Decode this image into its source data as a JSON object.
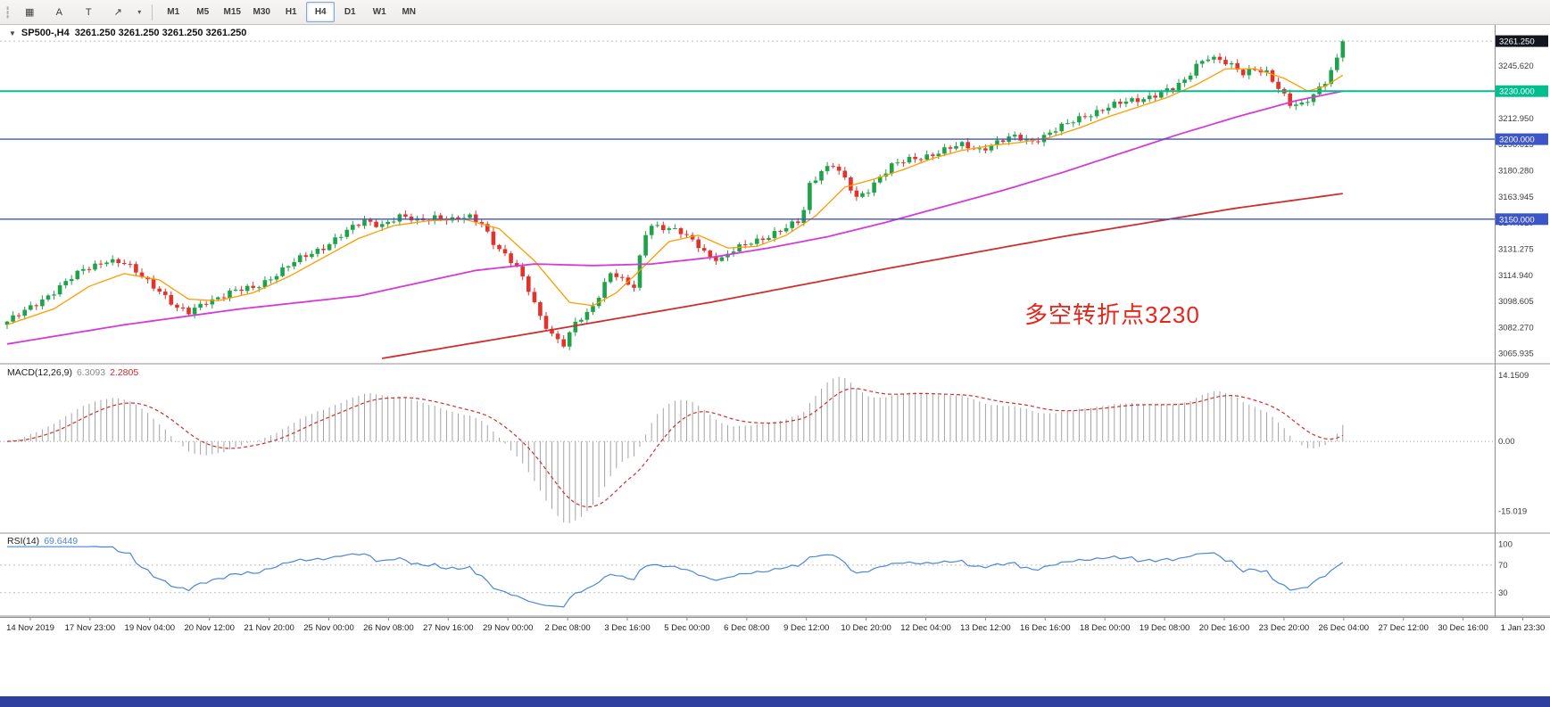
{
  "toolbar": {
    "grip_glyph": "┇",
    "tools": [
      {
        "name": "windows-grid-tool",
        "glyph": "▦"
      },
      {
        "name": "text-annotate-tool",
        "glyph": "A"
      },
      {
        "name": "text-label-tool",
        "glyph": "T"
      },
      {
        "name": "shapes-arrow-tool",
        "glyph": "↗"
      },
      {
        "name": "shapes-dropdown-caret",
        "glyph": "▾"
      }
    ],
    "timeframes": [
      "M1",
      "M5",
      "M15",
      "M30",
      "H1",
      "H4",
      "D1",
      "W1",
      "MN"
    ],
    "active_timeframe": "H4"
  },
  "chart_data": [
    {
      "type": "candlestick",
      "symbol_header": "SP500-,H4",
      "ohlc_header": "3261.250 3261.250 3261.250 3261.250",
      "collapse_icon": "▼",
      "timeframe": "H4",
      "current_price": 3261.25,
      "price_label": "3261.250",
      "price_badge_bg": "#14161f",
      "candle_count": 229,
      "up_color": "#1fa24a",
      "down_color": "#e0332c",
      "price_range": [
        3063,
        3268
      ],
      "y_ticks": [
        3245.62,
        3229.285,
        3212.95,
        3196.615,
        3180.28,
        3163.945,
        3147.61,
        3131.275,
        3114.94,
        3098.605,
        3082.27,
        3065.935
      ],
      "levels": [
        {
          "value": 3230.0,
          "label": "3230.000",
          "color": "#00bf8f",
          "width": 2
        },
        {
          "value": 3200.0,
          "label": "3200.000",
          "color": "#3c55c8",
          "width": 1.4
        },
        {
          "value": 3150.0,
          "label": "3150.000",
          "color": "#3c55c8",
          "width": 1.4
        }
      ],
      "close_path_anchors": [
        [
          0,
          3086
        ],
        [
          3,
          3092
        ],
        [
          6,
          3100
        ],
        [
          9,
          3108
        ],
        [
          13,
          3118
        ],
        [
          17,
          3125
        ],
        [
          20,
          3122
        ],
        [
          23,
          3114
        ],
        [
          26,
          3106
        ],
        [
          29,
          3094
        ],
        [
          31,
          3091
        ],
        [
          34,
          3099
        ],
        [
          38,
          3104
        ],
        [
          42,
          3107
        ],
        [
          46,
          3116
        ],
        [
          50,
          3125
        ],
        [
          54,
          3133
        ],
        [
          58,
          3142
        ],
        [
          61,
          3149
        ],
        [
          64,
          3147
        ],
        [
          67,
          3151
        ],
        [
          70,
          3149
        ],
        [
          73,
          3152
        ],
        [
          76,
          3149
        ],
        [
          79,
          3151
        ],
        [
          81,
          3148
        ],
        [
          83,
          3136
        ],
        [
          85,
          3127
        ],
        [
          87,
          3119
        ],
        [
          89,
          3106
        ],
        [
          91,
          3090
        ],
        [
          93,
          3078
        ],
        [
          95,
          3071
        ],
        [
          96,
          3077
        ],
        [
          97,
          3085
        ],
        [
          99,
          3091
        ],
        [
          101,
          3103
        ],
        [
          103,
          3117
        ],
        [
          105,
          3111
        ],
        [
          107,
          3107
        ],
        [
          108,
          3126
        ],
        [
          109,
          3142
        ],
        [
          110,
          3147
        ],
        [
          112,
          3145
        ],
        [
          115,
          3141
        ],
        [
          118,
          3134
        ],
        [
          120,
          3127
        ],
        [
          122,
          3125
        ],
        [
          124,
          3130
        ],
        [
          127,
          3136
        ],
        [
          130,
          3140
        ],
        [
          133,
          3144
        ],
        [
          135,
          3148
        ],
        [
          136,
          3156
        ],
        [
          137,
          3172
        ],
        [
          139,
          3181
        ],
        [
          141,
          3184
        ],
        [
          143,
          3174
        ],
        [
          145,
          3163
        ],
        [
          147,
          3169
        ],
        [
          149,
          3177
        ],
        [
          151,
          3183
        ],
        [
          154,
          3187
        ],
        [
          157,
          3190
        ],
        [
          160,
          3193
        ],
        [
          163,
          3196
        ],
        [
          166,
          3194
        ],
        [
          169,
          3198
        ],
        [
          172,
          3201
        ],
        [
          175,
          3199
        ],
        [
          178,
          3204
        ],
        [
          181,
          3209
        ],
        [
          184,
          3215
        ],
        [
          187,
          3219
        ],
        [
          190,
          3222
        ],
        [
          193,
          3225
        ],
        [
          196,
          3228
        ],
        [
          199,
          3231
        ],
        [
          201,
          3236
        ],
        [
          203,
          3247
        ],
        [
          205,
          3252
        ],
        [
          207,
          3249
        ],
        [
          209,
          3245
        ],
        [
          211,
          3241
        ],
        [
          213,
          3245
        ],
        [
          215,
          3242
        ],
        [
          217,
          3231
        ],
        [
          219,
          3221
        ],
        [
          221,
          3222
        ],
        [
          223,
          3229
        ],
        [
          225,
          3236
        ],
        [
          226,
          3242
        ],
        [
          227,
          3249
        ],
        [
          228,
          3261.25
        ]
      ],
      "moving_averages": [
        {
          "name": "ma-fast-orange",
          "color": "#ff9c00",
          "width": 1.3,
          "start_index": 0,
          "anchors": [
            [
              0,
              3084
            ],
            [
              8,
              3094
            ],
            [
              14,
              3108
            ],
            [
              20,
              3116
            ],
            [
              26,
              3112
            ],
            [
              31,
              3100
            ],
            [
              36,
              3099
            ],
            [
              42,
              3104
            ],
            [
              48,
              3114
            ],
            [
              54,
              3126
            ],
            [
              60,
              3138
            ],
            [
              66,
              3146
            ],
            [
              72,
              3149
            ],
            [
              78,
              3150
            ],
            [
              84,
              3144
            ],
            [
              90,
              3124
            ],
            [
              96,
              3098
            ],
            [
              100,
              3096
            ],
            [
              104,
              3104
            ],
            [
              108,
              3118
            ],
            [
              113,
              3136
            ],
            [
              118,
              3140
            ],
            [
              123,
              3132
            ],
            [
              128,
              3133
            ],
            [
              133,
              3140
            ],
            [
              138,
              3152
            ],
            [
              143,
              3170
            ],
            [
              148,
              3175
            ],
            [
              153,
              3181
            ],
            [
              158,
              3188
            ],
            [
              163,
              3193
            ],
            [
              168,
              3196
            ],
            [
              173,
              3198
            ],
            [
              178,
              3201
            ],
            [
              183,
              3207
            ],
            [
              188,
              3214
            ],
            [
              193,
              3220
            ],
            [
              198,
              3226
            ],
            [
              203,
              3234
            ],
            [
              208,
              3244
            ],
            [
              213,
              3244
            ],
            [
              218,
              3238
            ],
            [
              222,
              3230
            ],
            [
              225,
              3233
            ],
            [
              228,
              3240
            ]
          ]
        },
        {
          "name": "ma-mid-magenta",
          "color": "#d63ad6",
          "width": 1.8,
          "start_index": 0,
          "anchors": [
            [
              0,
              3072
            ],
            [
              20,
              3084
            ],
            [
              40,
              3094
            ],
            [
              60,
              3102
            ],
            [
              80,
              3118
            ],
            [
              90,
              3122
            ],
            [
              100,
              3121
            ],
            [
              110,
              3122
            ],
            [
              120,
              3126
            ],
            [
              130,
              3132
            ],
            [
              140,
              3139
            ],
            [
              150,
              3148
            ],
            [
              160,
              3158
            ],
            [
              170,
              3168
            ],
            [
              180,
              3179
            ],
            [
              190,
              3191
            ],
            [
              200,
              3203
            ],
            [
              210,
              3214
            ],
            [
              220,
              3224
            ],
            [
              228,
              3230
            ]
          ]
        },
        {
          "name": "ma-slow-red",
          "color": "#cf2e2e",
          "width": 1.8,
          "start_index": 64,
          "anchors": [
            [
              64,
              3063
            ],
            [
              90,
              3079
            ],
            [
              120,
              3098
            ],
            [
              150,
              3119
            ],
            [
              180,
              3139
            ],
            [
              210,
              3157
            ],
            [
              228,
              3166
            ]
          ]
        }
      ],
      "x_labels": [
        "14 Nov 2019",
        "17 Nov 23:00",
        "19 Nov 04:00",
        "20 Nov 12:00",
        "21 Nov 20:00",
        "25 Nov 00:00",
        "26 Nov 08:00",
        "27 Nov 16:00",
        "29 Nov 00:00",
        "2 Dec 08:00",
        "3 Dec 16:00",
        "5 Dec 00:00",
        "6 Dec 08:00",
        "9 Dec 12:00",
        "10 Dec 20:00",
        "12 Dec 04:00",
        "13 Dec 12:00",
        "16 Dec 16:00",
        "18 Dec 00:00",
        "19 Dec 08:00",
        "20 Dec 16:00",
        "23 Dec 20:00",
        "26 Dec 04:00",
        "27 Dec 12:00",
        "30 Dec 16:00",
        "1 Jan 23:30"
      ],
      "annotation": {
        "text": "多空转折点3230",
        "color": "#e8251a"
      }
    },
    {
      "type": "macd",
      "label": "MACD(12,26,9)",
      "main_value": "6.3093",
      "signal_value": "2.2805",
      "params": [
        12,
        26,
        9
      ],
      "histogram_color": "#a3a3a3",
      "signal_color": "#cf2e2e",
      "y_ticks": [
        {
          "v": 14.1509,
          "label": "14.1509"
        },
        {
          "v": 0,
          "label": "0.00"
        },
        {
          "v": -15.019,
          "label": "-15.019"
        }
      ]
    },
    {
      "type": "rsi",
      "label": "RSI(14)",
      "value": "69.6449",
      "period": 14,
      "color": "#4a86d8",
      "range": [
        0,
        110
      ],
      "dotted_levels": [
        70,
        30
      ],
      "y_ticks": [
        {
          "v": 100,
          "label": "100"
        },
        {
          "v": 70,
          "label": "70"
        },
        {
          "v": 30,
          "label": "30"
        }
      ]
    }
  ]
}
